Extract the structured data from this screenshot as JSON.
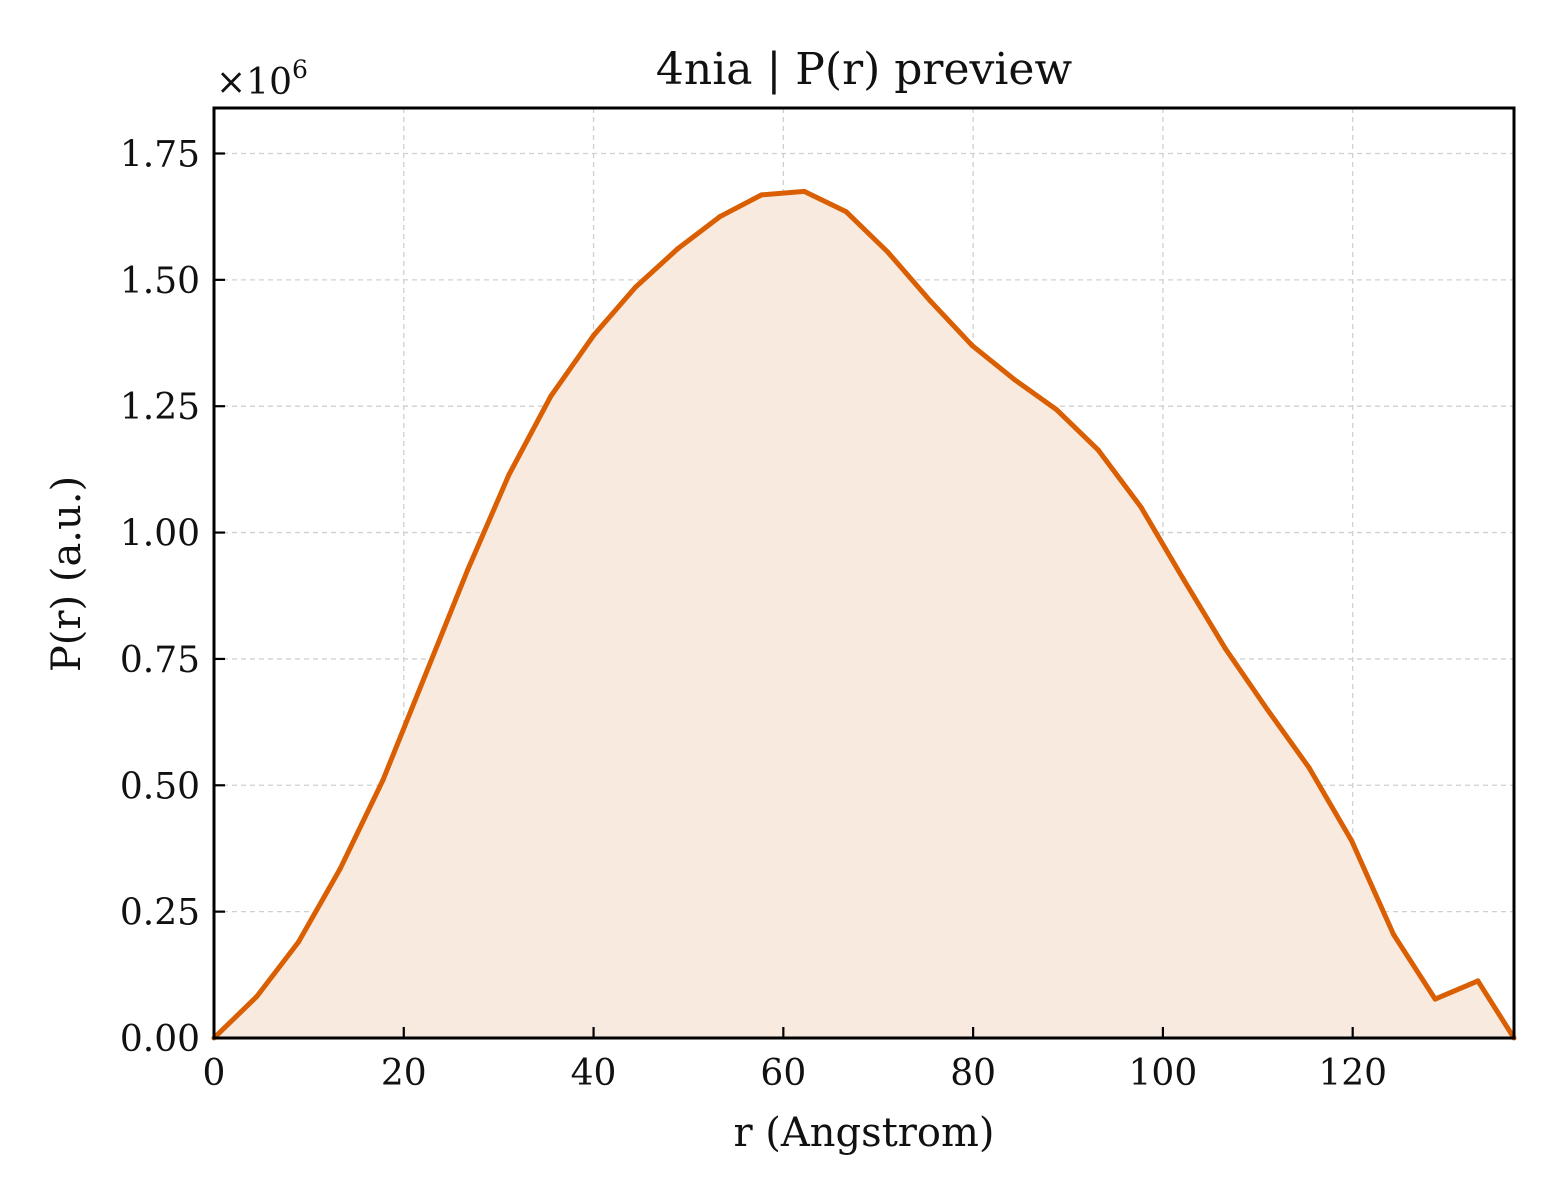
{
  "chart_data": {
    "type": "area",
    "title": "4nia | P(r) preview",
    "xlabel": "r (Angstrom)",
    "ylabel": "P(r) (a.u.)",
    "y_multiplier": "×10",
    "y_multiplier_exp": "6",
    "xlim": [
      0,
      137
    ],
    "ylim": [
      0,
      1.84
    ],
    "xticks": [
      0,
      20,
      40,
      60,
      80,
      100,
      120
    ],
    "xtick_labels": [
      "0",
      "20",
      "40",
      "60",
      "80",
      "100",
      "120"
    ],
    "yticks": [
      0,
      0.25,
      0.5,
      0.75,
      1.0,
      1.25,
      1.5,
      1.75
    ],
    "ytick_labels": [
      "0.00",
      "0.25",
      "0.50",
      "0.75",
      "1.00",
      "1.25",
      "1.50",
      "1.75"
    ],
    "grid": true,
    "line_color": "#d95f02",
    "fill_color": "#f9eadf",
    "series": [
      {
        "x": [
          0,
          4.5,
          8.9,
          13.3,
          17.8,
          22.2,
          26.7,
          31.1,
          35.5,
          40.0,
          44.4,
          48.9,
          53.3,
          57.7,
          62.2,
          66.6,
          71.0,
          75.5,
          79.9,
          84.4,
          88.8,
          93.2,
          97.7,
          102.1,
          106.6,
          111.0,
          115.4,
          119.9,
          124.3,
          128.7,
          133.2,
          137.0
        ],
        "y": [
          0.0,
          0.082,
          0.19,
          0.335,
          0.51,
          0.715,
          0.925,
          1.115,
          1.27,
          1.39,
          1.485,
          1.562,
          1.625,
          1.668,
          1.675,
          1.635,
          1.555,
          1.458,
          1.37,
          1.302,
          1.243,
          1.163,
          1.05,
          0.91,
          0.77,
          0.65,
          0.535,
          0.39,
          0.205,
          0.077,
          0.113,
          0.0
        ]
      }
    ]
  }
}
